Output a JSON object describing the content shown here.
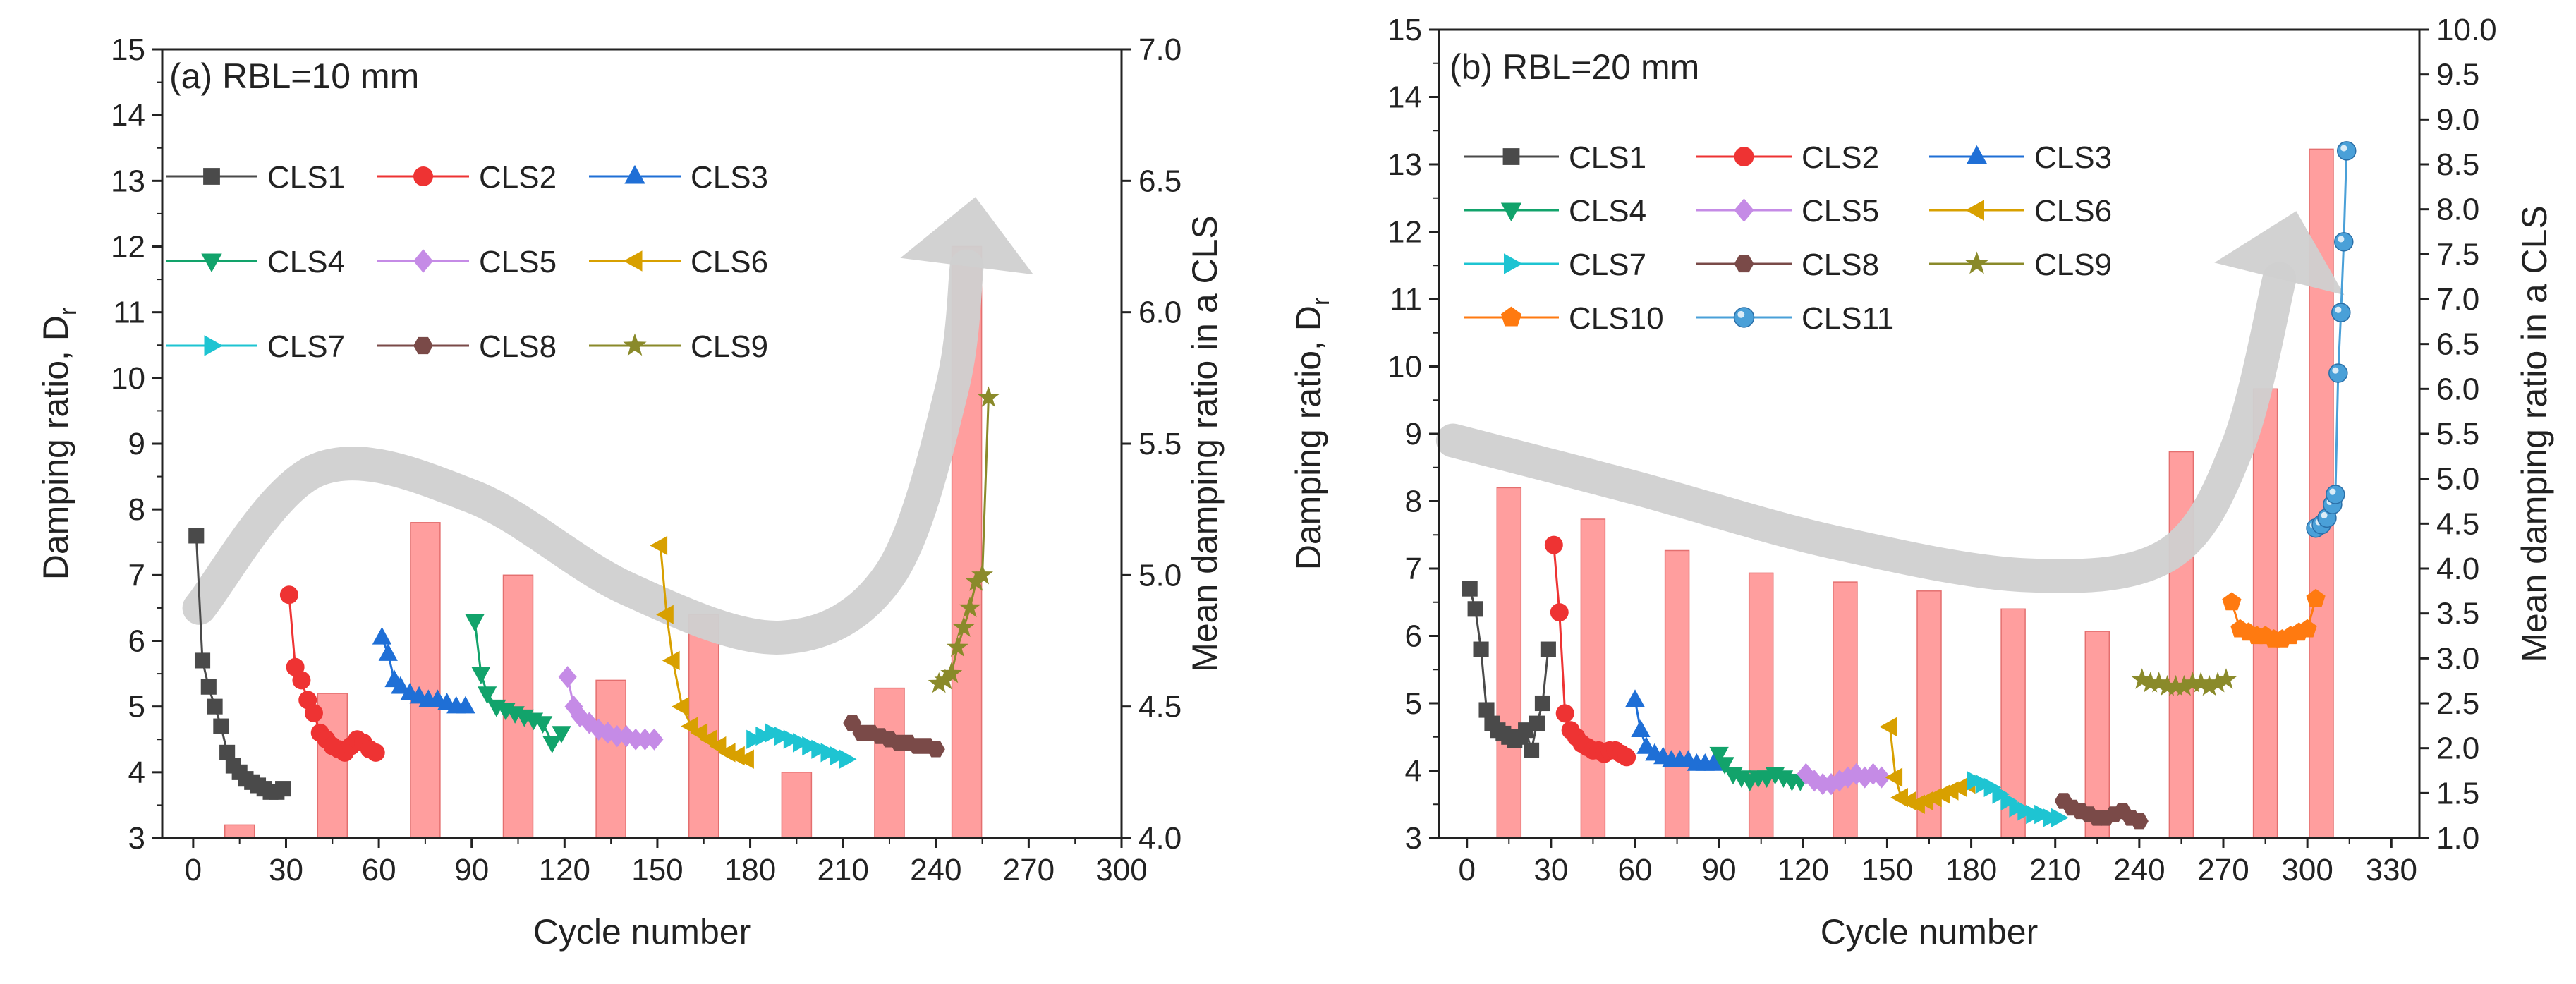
{
  "figure": {
    "panel_a_label": "(a) RBL=10 mm",
    "panel_b_label": "(b) RBL=20 mm"
  },
  "colors": {
    "CLS1": "#4a4a4a",
    "CLS2": "#ee3333",
    "CLS3": "#1f6fd6",
    "CLS4": "#12a36b",
    "CLS5": "#c58be6",
    "CLS6": "#d8a000",
    "CLS7": "#1ec4d2",
    "CLS8": "#7a4a48",
    "CLS9": "#8a8a2a",
    "CLS10": "#ff7a10",
    "CLS11": "#4aa0d8",
    "bar": "#ff9494",
    "bar_edge": "#e26060",
    "arrow": "#d0d0d0"
  },
  "chart_data": [
    {
      "id": "a",
      "type": "line",
      "title": "(a) RBL=10 mm",
      "xlabel": "Cycle number",
      "ylabel": "Damping ratio, Dr",
      "y2label": "Mean damping ratio in a CLS",
      "xlim": [
        -10,
        300
      ],
      "xticks": [
        0,
        30,
        60,
        90,
        120,
        150,
        180,
        210,
        240,
        270,
        300
      ],
      "ylim": [
        3,
        15
      ],
      "yticks": [
        3,
        4,
        5,
        6,
        7,
        8,
        9,
        10,
        11,
        12,
        13,
        14,
        15
      ],
      "y2lim": [
        4.0,
        7.0
      ],
      "y2ticks": [
        "4.0",
        "4.5",
        "5.0",
        "5.5",
        "6.0",
        "6.5",
        "7.0"
      ],
      "legend": [
        "CLS1",
        "CLS2",
        "CLS3",
        "CLS4",
        "CLS5",
        "CLS6",
        "CLS7",
        "CLS8",
        "CLS9"
      ],
      "bars": {
        "name": "Mean damping ratio in a CLS",
        "x": [
          15,
          45,
          75,
          105,
          135,
          165,
          195,
          225,
          250
        ],
        "values": [
          4.05,
          4.55,
          5.2,
          5.0,
          4.6,
          4.85,
          4.25,
          4.57,
          6.25
        ]
      },
      "series": [
        {
          "name": "CLS1",
          "marker": "square",
          "x": [
            1,
            3,
            5,
            7,
            9,
            11,
            13,
            15,
            17,
            19,
            21,
            23,
            25,
            27,
            29
          ],
          "y": [
            7.6,
            5.7,
            5.3,
            5.0,
            4.7,
            4.3,
            4.1,
            4.0,
            3.9,
            3.85,
            3.8,
            3.75,
            3.7,
            3.7,
            3.75
          ]
        },
        {
          "name": "CLS2",
          "marker": "circle",
          "x": [
            31,
            33,
            35,
            37,
            39,
            41,
            43,
            45,
            47,
            49,
            51,
            53,
            55,
            57,
            59
          ],
          "y": [
            6.7,
            5.6,
            5.4,
            5.1,
            4.9,
            4.6,
            4.5,
            4.4,
            4.35,
            4.3,
            4.4,
            4.5,
            4.45,
            4.35,
            4.3
          ]
        },
        {
          "name": "CLS3",
          "marker": "triangle-up",
          "x": [
            61,
            63,
            65,
            67,
            70,
            73,
            76,
            79,
            82,
            85,
            88
          ],
          "y": [
            6.05,
            5.8,
            5.4,
            5.3,
            5.2,
            5.15,
            5.1,
            5.1,
            5.05,
            5.0,
            5.0
          ]
        },
        {
          "name": "CLS4",
          "marker": "triangle-down",
          "x": [
            91,
            93,
            95,
            98,
            101,
            104,
            107,
            110,
            113,
            116,
            119
          ],
          "y": [
            6.3,
            5.5,
            5.2,
            5.0,
            4.95,
            4.9,
            4.85,
            4.8,
            4.75,
            4.45,
            4.6
          ]
        },
        {
          "name": "CLS5",
          "marker": "diamond",
          "x": [
            121,
            123,
            125,
            128,
            131,
            134,
            137,
            140,
            143,
            146,
            149
          ],
          "y": [
            5.45,
            5.0,
            4.85,
            4.75,
            4.65,
            4.6,
            4.55,
            4.55,
            4.5,
            4.5,
            4.5
          ]
        },
        {
          "name": "CLS6",
          "marker": "triangle-left",
          "x": [
            151,
            153,
            155,
            158,
            161,
            164,
            167,
            170,
            173,
            176,
            179
          ],
          "y": [
            7.45,
            6.4,
            5.7,
            5.0,
            4.7,
            4.6,
            4.5,
            4.4,
            4.3,
            4.25,
            4.2
          ]
        },
        {
          "name": "CLS7",
          "marker": "triangle-right",
          "x": [
            181,
            184,
            187,
            190,
            193,
            196,
            199,
            202,
            205,
            208,
            211
          ],
          "y": [
            4.5,
            4.55,
            4.6,
            4.55,
            4.5,
            4.45,
            4.4,
            4.35,
            4.3,
            4.25,
            4.2
          ]
        },
        {
          "name": "CLS8",
          "marker": "hexagon",
          "x": [
            213,
            216,
            219,
            222,
            225,
            228,
            231,
            234,
            237,
            240
          ],
          "y": [
            4.75,
            4.6,
            4.6,
            4.55,
            4.5,
            4.45,
            4.45,
            4.4,
            4.4,
            4.35
          ]
        },
        {
          "name": "CLS9",
          "marker": "star",
          "x": [
            241,
            243,
            245,
            247,
            249,
            251,
            253,
            255,
            257
          ],
          "y": [
            5.35,
            5.4,
            5.5,
            5.9,
            6.2,
            6.5,
            6.9,
            7.0,
            9.7
          ]
        }
      ],
      "trend_arrow": {
        "x": [
          2,
          40,
          90,
          140,
          190,
          225,
          245,
          250
        ],
        "y": [
          6.5,
          8.6,
          8.2,
          6.8,
          6.05,
          7.0,
          9.8,
          11.7
        ]
      }
    },
    {
      "id": "b",
      "type": "line",
      "title": "(b) RBL=20 mm",
      "xlabel": "Cycle number",
      "ylabel": "Damping ratio, Dr",
      "y2label": "Mean damping ratio in a CLS",
      "xlim": [
        -10,
        340
      ],
      "xticks": [
        0,
        30,
        60,
        90,
        120,
        150,
        180,
        210,
        240,
        270,
        300,
        330
      ],
      "ylim": [
        3,
        15
      ],
      "yticks": [
        3,
        4,
        5,
        6,
        7,
        8,
        9,
        10,
        11,
        12,
        13,
        14,
        15
      ],
      "y2lim": [
        1.0,
        10.0
      ],
      "y2ticks": [
        "1.0",
        "1.5",
        "2.0",
        "2.5",
        "3.0",
        "3.5",
        "4.0",
        "4.5",
        "5.0",
        "5.5",
        "6.0",
        "6.5",
        "7.0",
        "7.5",
        "8.0",
        "8.5",
        "9.0",
        "9.5",
        "10.0"
      ],
      "legend": [
        "CLS1",
        "CLS2",
        "CLS3",
        "CLS4",
        "CLS5",
        "CLS6",
        "CLS7",
        "CLS8",
        "CLS9",
        "CLS10",
        "CLS11"
      ],
      "bars": {
        "name": "Mean damping ratio in a CLS",
        "x": [
          15,
          45,
          75,
          105,
          135,
          165,
          195,
          225,
          255,
          285,
          305
        ],
        "values": [
          4.9,
          4.55,
          4.2,
          3.95,
          3.85,
          3.75,
          3.55,
          3.3,
          5.3,
          6.0,
          8.67
        ]
      },
      "series": [
        {
          "name": "CLS1",
          "marker": "square",
          "x": [
            1,
            3,
            5,
            7,
            9,
            11,
            13,
            15,
            17,
            19,
            21,
            23,
            25,
            27,
            29
          ],
          "y": [
            6.7,
            6.4,
            5.8,
            4.9,
            4.7,
            4.6,
            4.55,
            4.5,
            4.45,
            4.5,
            4.6,
            4.3,
            4.7,
            5.0,
            5.8
          ]
        },
        {
          "name": "CLS2",
          "marker": "circle",
          "x": [
            31,
            33,
            35,
            37,
            39,
            41,
            43,
            45,
            47,
            49,
            51,
            53,
            55,
            57
          ],
          "y": [
            7.35,
            6.35,
            4.85,
            4.6,
            4.5,
            4.4,
            4.35,
            4.3,
            4.3,
            4.25,
            4.3,
            4.3,
            4.25,
            4.2
          ]
        },
        {
          "name": "CLS3",
          "marker": "triangle-up",
          "x": [
            60,
            62,
            64,
            67,
            70,
            73,
            76,
            79,
            82,
            85,
            88
          ],
          "y": [
            5.05,
            4.6,
            4.35,
            4.25,
            4.2,
            4.15,
            4.15,
            4.15,
            4.1,
            4.1,
            4.1
          ]
        },
        {
          "name": "CLS4",
          "marker": "triangle-down",
          "x": [
            90,
            92,
            95,
            98,
            101,
            104,
            107,
            110,
            113,
            116,
            119
          ],
          "y": [
            4.25,
            4.1,
            3.95,
            3.9,
            3.85,
            3.9,
            3.9,
            3.95,
            3.9,
            3.85,
            3.85
          ]
        },
        {
          "name": "CLS5",
          "marker": "diamond",
          "x": [
            121,
            124,
            127,
            130,
            133,
            136,
            139,
            142,
            145,
            148
          ],
          "y": [
            3.95,
            3.85,
            3.8,
            3.8,
            3.85,
            3.9,
            3.95,
            3.9,
            3.95,
            3.9
          ]
        },
        {
          "name": "CLS6",
          "marker": "triangle-left",
          "x": [
            151,
            153,
            155,
            158,
            161,
            164,
            167,
            170,
            173,
            176,
            179
          ],
          "y": [
            4.65,
            3.9,
            3.6,
            3.55,
            3.5,
            3.55,
            3.6,
            3.65,
            3.7,
            3.75,
            3.8
          ]
        },
        {
          "name": "CLS7",
          "marker": "triangle-right",
          "x": [
            181,
            184,
            187,
            190,
            193,
            196,
            199,
            202,
            205,
            208,
            211
          ],
          "y": [
            3.85,
            3.8,
            3.75,
            3.65,
            3.55,
            3.45,
            3.4,
            3.35,
            3.35,
            3.3,
            3.3
          ]
        },
        {
          "name": "CLS8",
          "marker": "hexagon",
          "x": [
            213,
            216,
            219,
            222,
            225,
            228,
            231,
            234,
            237,
            240
          ],
          "y": [
            3.55,
            3.45,
            3.4,
            3.35,
            3.3,
            3.3,
            3.35,
            3.4,
            3.3,
            3.25
          ]
        },
        {
          "name": "CLS9",
          "marker": "star",
          "x": [
            241,
            244,
            247,
            250,
            253,
            256,
            259,
            262,
            265,
            268,
            271
          ],
          "y": [
            5.35,
            5.3,
            5.3,
            5.25,
            5.25,
            5.25,
            5.3,
            5.3,
            5.25,
            5.3,
            5.35
          ]
        },
        {
          "name": "CLS10",
          "marker": "pentagon",
          "x": [
            273,
            276,
            279,
            282,
            285,
            288,
            291,
            294,
            297,
            300,
            303
          ],
          "y": [
            6.5,
            6.1,
            6.05,
            6.0,
            6.0,
            5.95,
            5.95,
            6.0,
            6.05,
            6.1,
            6.55
          ]
        },
        {
          "name": "CLS11",
          "marker": "sphere",
          "x": [
            303,
            305,
            307,
            309,
            310,
            311,
            312,
            313,
            314
          ],
          "y": [
            7.6,
            7.65,
            7.75,
            7.95,
            8.1,
            9.9,
            10.8,
            11.85,
            13.2
          ]
        }
      ],
      "trend_arrow": {
        "x": [
          -5,
          60,
          130,
          200,
          250,
          275,
          290
        ],
        "y": [
          8.9,
          8.2,
          7.4,
          6.9,
          7.2,
          8.8,
          11.3
        ]
      }
    }
  ]
}
